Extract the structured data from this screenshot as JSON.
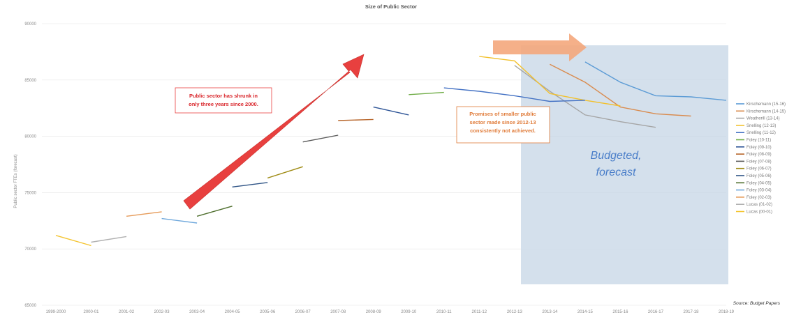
{
  "chart_data": {
    "type": "line",
    "title": "Size of Public Sector",
    "ylabel": "Public sector FTEs (forecast)",
    "xlabel": "",
    "categories": [
      "1999-2000",
      "2000-01",
      "2001-02",
      "2002-03",
      "2003-04",
      "2004-05",
      "2005-06",
      "2006-07",
      "2007-08",
      "2008-09",
      "2009-10",
      "2010-11",
      "2011-12",
      "2012-13",
      "2013-14",
      "2014-15",
      "2015-16",
      "2016-17",
      "2017-18",
      "2018-19"
    ],
    "y_ticks": [
      "65000",
      "70000",
      "75000",
      "80000",
      "85000",
      "90000"
    ],
    "ylim": [
      65000,
      90000
    ],
    "grid": true,
    "legend_position": "right",
    "series": [
      {
        "name": "Kirschemann (15-16)",
        "color": "#5b9bd5",
        "x": [
          "2014-15",
          "2015-16",
          "2016-17",
          "2017-18",
          "2018-19"
        ],
        "values": [
          86600,
          84800,
          83600,
          83500,
          83200
        ]
      },
      {
        "name": "Kirschemann (14-15)",
        "color": "#d98b4e",
        "x": [
          "2013-14",
          "2014-15",
          "2015-16",
          "2016-17",
          "2017-18"
        ],
        "values": [
          86400,
          84800,
          82600,
          82000,
          81800
        ]
      },
      {
        "name": "Weatherill (13-14)",
        "color": "#a5a5a5",
        "x": [
          "2012-13",
          "2013-14",
          "2014-15",
          "2015-16",
          "2016-17"
        ],
        "values": [
          86300,
          84000,
          81900,
          81300,
          80800
        ]
      },
      {
        "name": "Snelling (12-13)",
        "color": "#f2c12e",
        "x": [
          "2011-12",
          "2012-13",
          "2013-14",
          "2014-15",
          "2015-16"
        ],
        "values": [
          87100,
          86700,
          83800,
          83200,
          82700
        ]
      },
      {
        "name": "Snelling (11-12)",
        "color": "#4472c4",
        "x": [
          "2010-11",
          "2011-12",
          "2012-13",
          "2013-14",
          "2014-15"
        ],
        "values": [
          84300,
          84000,
          83600,
          83100,
          83200
        ]
      },
      {
        "name": "Foley (10-11)",
        "color": "#70ad47",
        "x": [
          "2009-10",
          "2010-11"
        ],
        "values": [
          83700,
          83900
        ]
      },
      {
        "name": "Foley (09-10)",
        "color": "#2e5597",
        "x": [
          "2008-09",
          "2009-10"
        ],
        "values": [
          82600,
          81900
        ]
      },
      {
        "name": "Foley (08-09)",
        "color": "#b7652a",
        "x": [
          "2007-08",
          "2008-09"
        ],
        "values": [
          81400,
          81500
        ]
      },
      {
        "name": "Foley (07-08)",
        "color": "#595959",
        "x": [
          "2006-07",
          "2007-08"
        ],
        "values": [
          79500,
          80100
        ]
      },
      {
        "name": "Foley (06-07)",
        "color": "#9e8a12",
        "x": [
          "2005-06",
          "2006-07"
        ],
        "values": [
          76300,
          77300
        ]
      },
      {
        "name": "Foley (05-06)",
        "color": "#2f5486",
        "x": [
          "2004-05",
          "2005-06"
        ],
        "values": [
          75500,
          75900
        ]
      },
      {
        "name": "Foley (04-05)",
        "color": "#4f6f2e",
        "x": [
          "2003-04",
          "2004-05"
        ],
        "values": [
          72900,
          73800
        ]
      },
      {
        "name": "Foley (03-04)",
        "color": "#6fa8dc",
        "x": [
          "2002-03",
          "2003-04"
        ],
        "values": [
          72700,
          72300
        ]
      },
      {
        "name": "Foley (02-03)",
        "color": "#e69b5a",
        "x": [
          "2001-02",
          "2002-03"
        ],
        "values": [
          72900,
          73300
        ]
      },
      {
        "name": "Lucas (01-02)",
        "color": "#b0b0b0",
        "x": [
          "2000-01",
          "2001-02"
        ],
        "values": [
          70600,
          71100
        ]
      },
      {
        "name": "Lucas (00-01)",
        "color": "#f4c430",
        "x": [
          "1999-2000",
          "2000-01"
        ],
        "values": [
          71200,
          70300
        ]
      }
    ],
    "annotations": [
      {
        "text": "Public sector has shrunk in only three years since 2000.",
        "color": "#d9262b"
      },
      {
        "text": "Promises of smaller public sector made since 2012-13 consistently not achieved.",
        "color": "#e07b39"
      },
      {
        "text": "Budgeted, forecast",
        "color": "#4a7ec9"
      }
    ],
    "source": "Source: Budget Papers"
  },
  "annotations": {
    "red_note_line1": "Public sector has shrunk in",
    "red_note_line2": "only three years since 2000.",
    "orange_note_line1": "Promises of smaller public",
    "orange_note_line2": "sector made since 2012-13",
    "orange_note_line3": "consistently not achieved.",
    "forecast_line1": "Budgeted,",
    "forecast_line2": "forecast",
    "source": "Source: Budget Papers"
  },
  "colors": {
    "red_arrow": "#e8403f",
    "orange_arrow": "#f4a77c",
    "forecast_box": "#c5d5e6",
    "gridline": "#e6e6e6"
  }
}
